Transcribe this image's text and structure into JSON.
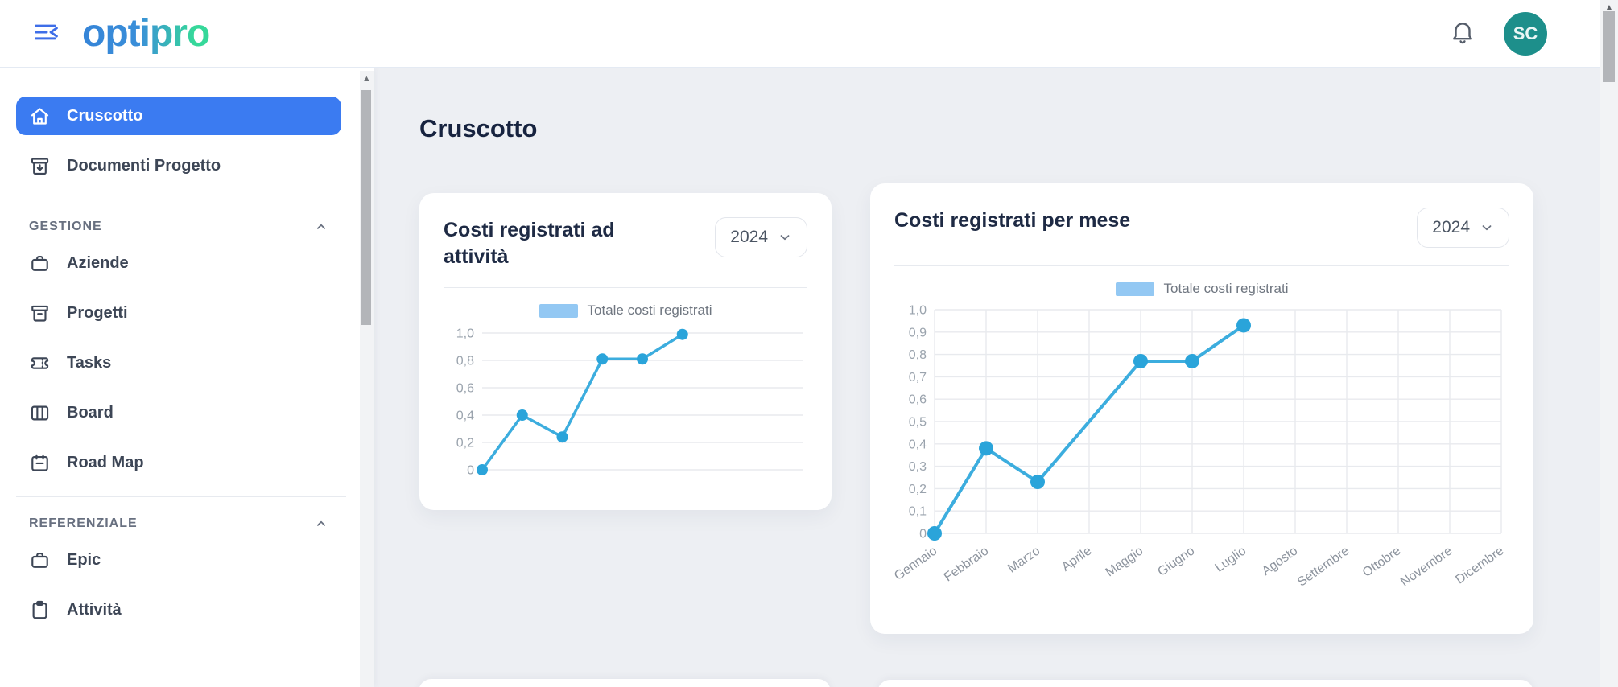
{
  "header": {
    "logo_text": "optipro",
    "avatar_initials": "SC",
    "avatar_color": "#1d8f8b"
  },
  "sidebar": {
    "items_top": [
      {
        "label": "Cruscotto",
        "icon": "home",
        "active": true
      },
      {
        "label": "Documenti Progetto",
        "icon": "archive-download",
        "active": false
      }
    ],
    "sections": [
      {
        "title": "GESTIONE",
        "items": [
          {
            "label": "Aziende",
            "icon": "briefcase"
          },
          {
            "label": "Progetti",
            "icon": "archive-box"
          },
          {
            "label": "Tasks",
            "icon": "ticket"
          },
          {
            "label": "Board",
            "icon": "columns"
          },
          {
            "label": "Road Map",
            "icon": "calendar"
          }
        ]
      },
      {
        "title": "REFERENZIALE",
        "items": [
          {
            "label": "Epic",
            "icon": "briefcase"
          },
          {
            "label": "Attività",
            "icon": "clipboard"
          }
        ]
      }
    ]
  },
  "main": {
    "page_title": "Cruscotto"
  },
  "chart_data": [
    {
      "type": "line",
      "title": "Costi registrati ad attività",
      "year_selected": "2024",
      "legend": [
        "Totale costi registrati"
      ],
      "categories": [],
      "x_labels_hidden": true,
      "x_slots": 9,
      "values": [
        0,
        0.4,
        0.24,
        0.81,
        0.81,
        0.99
      ],
      "ylim": [
        0,
        1.0
      ],
      "ytick_step": 0.2,
      "ytick_labels": [
        "0",
        "0,2",
        "0,4",
        "0,6",
        "0,8",
        "1,0"
      ],
      "grid": "horizontal-only",
      "legend_position": "top-center",
      "line_color": "#3cadde",
      "dot_color": "#2aa4da",
      "legend_swatch_color": "#93c8f3"
    },
    {
      "type": "line",
      "title": "Costi registrati per mese",
      "year_selected": "2024",
      "legend": [
        "Totale costi registrati"
      ],
      "categories": [
        "Gennaio",
        "Febbraio",
        "Marzo",
        "Aprile",
        "Maggio",
        "Giugno",
        "Luglio",
        "Agosto",
        "Settembre",
        "Ottobre",
        "Novembre",
        "Dicembre"
      ],
      "values": [
        0,
        0.38,
        0.23,
        null,
        0.77,
        0.77,
        0.93,
        null,
        null,
        null,
        null,
        null
      ],
      "span_gaps": true,
      "ylim": [
        0,
        1.0
      ],
      "ytick_step": 0.1,
      "ytick_labels": [
        "0",
        "0,1",
        "0,2",
        "0,3",
        "0,4",
        "0,5",
        "0,6",
        "0,7",
        "0,8",
        "0,9",
        "1,0"
      ],
      "grid": "both",
      "legend_position": "top-center",
      "line_color": "#3cadde",
      "dot_color": "#2aa4da",
      "legend_swatch_color": "#93c8f3"
    }
  ]
}
